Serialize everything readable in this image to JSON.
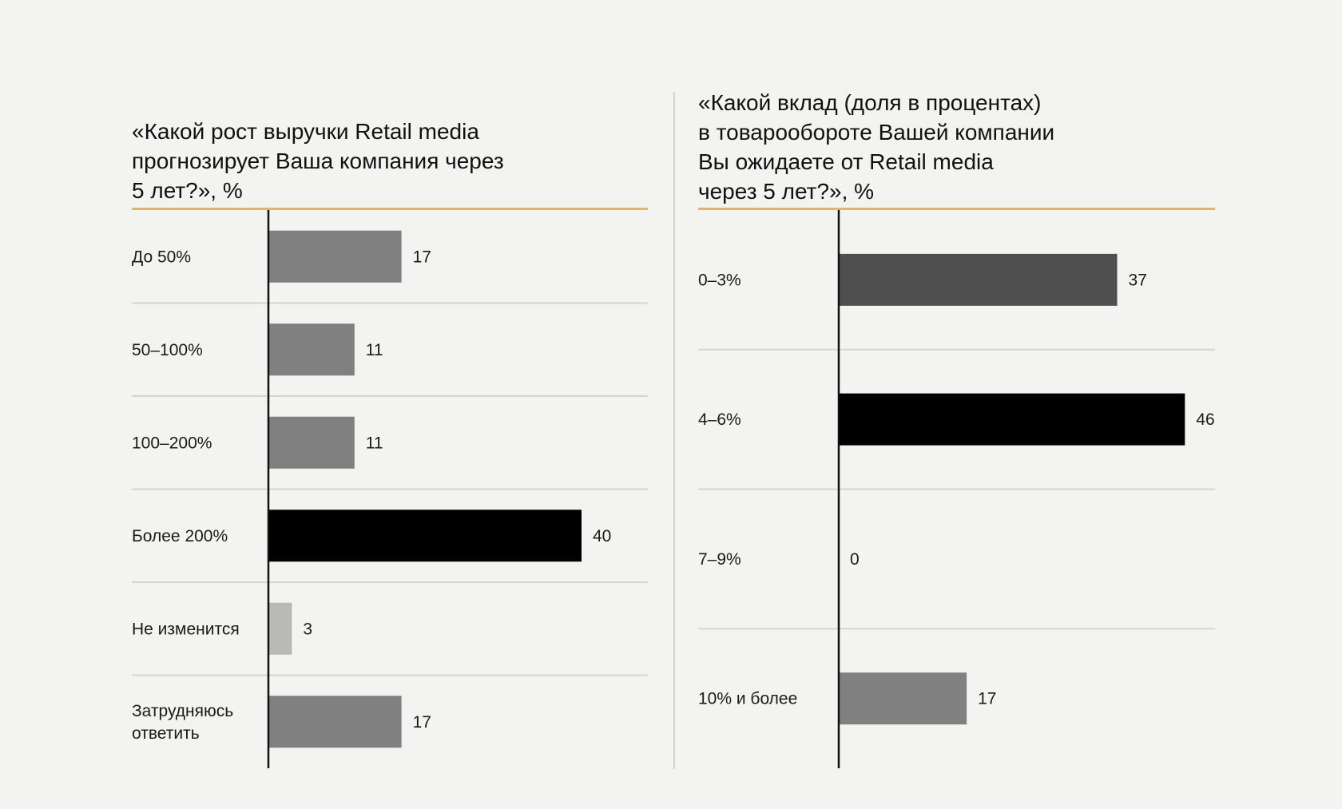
{
  "chart_data": [
    {
      "type": "bar",
      "orientation": "horizontal",
      "title": "«Какой рост выручки Retail media прогнозирует Ваша компания через 5 лет?», %",
      "categories": [
        "До 50%",
        "50–100%",
        "100–200%",
        "Более 200%",
        "Не изменится",
        "Затрудняюсь\nответить"
      ],
      "values": [
        17,
        11,
        11,
        40,
        3,
        17
      ],
      "bar_colors": [
        "#808080",
        "#808080",
        "#808080",
        "#000000",
        "#b9b9b8",
        "#808080"
      ],
      "xlim": [
        0,
        48
      ],
      "grid": false
    },
    {
      "type": "bar",
      "orientation": "horizontal",
      "title": "«Какой вклад (доля в процентах) в товарообороте Вашей компании Вы ожидаете от Retail media через 5 лет?», %",
      "categories": [
        "0–3%",
        "4–6%",
        "7–9%",
        "10% и более"
      ],
      "values": [
        37,
        46,
        0,
        17
      ],
      "bar_colors": [
        "#4f4f4f",
        "#000000",
        "#808080",
        "#808080"
      ],
      "xlim": [
        0,
        48
      ],
      "grid": false
    }
  ],
  "colors": {
    "title_rule": "#dcb673",
    "separator": "#d4d4d1",
    "axis": "#111111",
    "background": "#f3f3f1"
  }
}
